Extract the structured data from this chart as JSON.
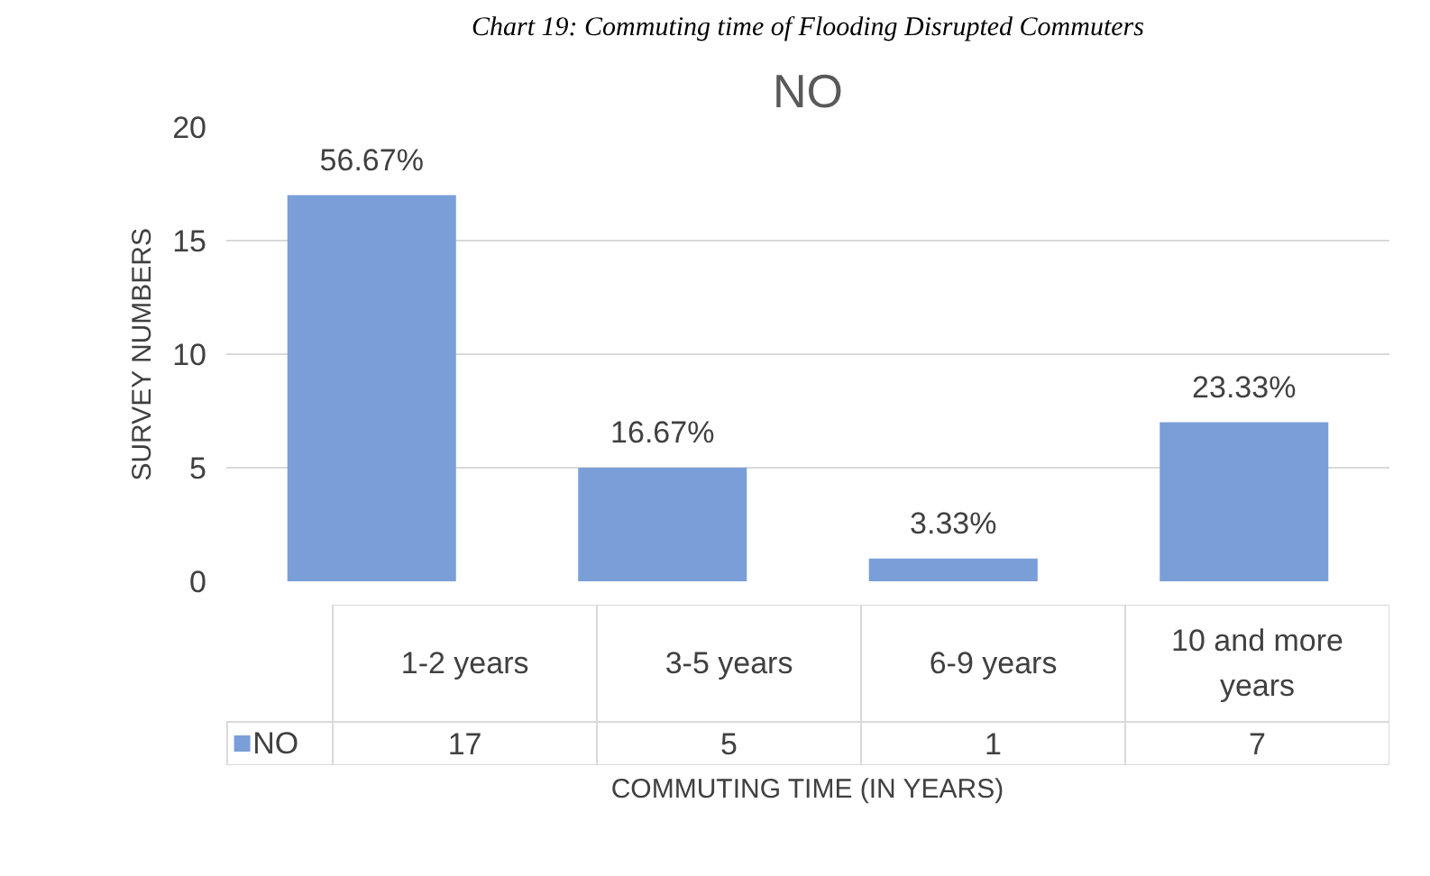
{
  "chart_data": {
    "type": "bar",
    "title": "NO",
    "annotations": [
      "Chart 19: Commuting time of Flooding Disrupted Commuters",
      {
        "text": "56.67%",
        "x": "1-2 years",
        "y": 17
      },
      {
        "text": "16.67%",
        "x": "3-5 years",
        "y": 5
      },
      {
        "text": "3.33%",
        "x": "6-9 years",
        "y": 1
      },
      {
        "text": "23.33%",
        "x": "10 and more years",
        "y": 7
      }
    ],
    "xlabel": "COMMUTING TIME (IN YEARS)",
    "ylabel": "SURVEY NUMBERS",
    "categories": [
      "1-2 years",
      "3-5 years",
      "6-9 years",
      "10 and more years"
    ],
    "series": [
      {
        "name": "NO",
        "color": "#7a9fd8",
        "values": [
          17,
          5,
          1,
          7
        ],
        "value_labels": [
          "17",
          "5",
          "1",
          "7"
        ]
      }
    ],
    "ylim": [
      0,
      20
    ],
    "yticks": [
      0,
      5,
      10,
      15,
      20
    ],
    "grid": "y",
    "legend": "bottom"
  }
}
